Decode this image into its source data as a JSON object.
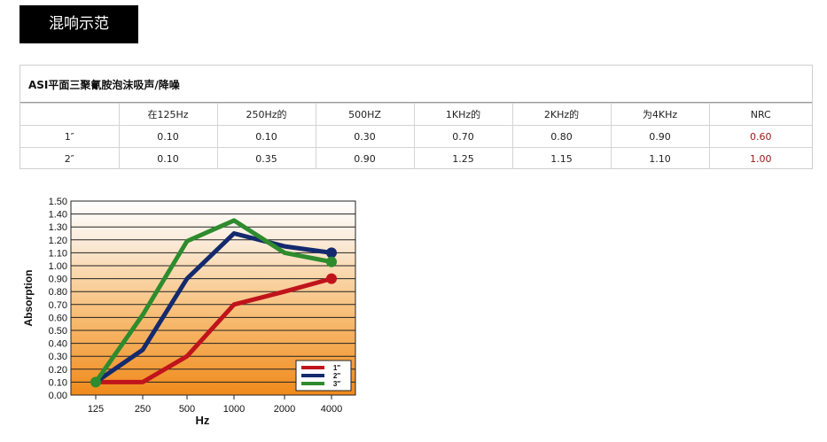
{
  "section_title": "混响示范",
  "spec_table": {
    "heading": "ASI平面三聚氰胺泡沫吸声/降噪",
    "headers": [
      "",
      "在125Hz",
      "250Hz的",
      "500HZ",
      "1KHz的",
      "2KHz的",
      "为4KHz",
      "NRC"
    ],
    "rows": [
      [
        "1″",
        "0.10",
        "0.10",
        "0.30",
        "0.70",
        "0.80",
        "0.90",
        "0.60"
      ],
      [
        "2″",
        "0.10",
        "0.35",
        "0.90",
        "1.25",
        "1.15",
        "1.10",
        "1.00"
      ]
    ],
    "nrc_color": "#a11818"
  },
  "chart_data": {
    "type": "line",
    "ylabel": "Absorption",
    "xlabel": "Hz",
    "categories": [
      "125",
      "250",
      "500",
      "1000",
      "2000",
      "4000"
    ],
    "ylim": [
      0,
      1.5
    ],
    "yticks": [
      "0.00",
      "0.10",
      "0.20",
      "0.30",
      "0.40",
      "0.50",
      "0.60",
      "0.70",
      "0.80",
      "0.90",
      "1.00",
      "1.10",
      "1.20",
      "1.30",
      "1.40",
      "1.50"
    ],
    "grid": true,
    "legend_position": "bottom-right",
    "series": [
      {
        "name": "1″",
        "color": "#c0141c",
        "values": [
          0.1,
          0.1,
          0.3,
          0.7,
          0.8,
          0.9
        ]
      },
      {
        "name": "2″",
        "color": "#142a6e",
        "values": [
          0.1,
          0.35,
          0.9,
          1.25,
          1.15,
          1.1
        ]
      },
      {
        "name": "3″",
        "color": "#2e8b2e",
        "values": [
          0.1,
          0.62,
          1.19,
          1.35,
          1.1,
          1.03
        ]
      }
    ]
  }
}
